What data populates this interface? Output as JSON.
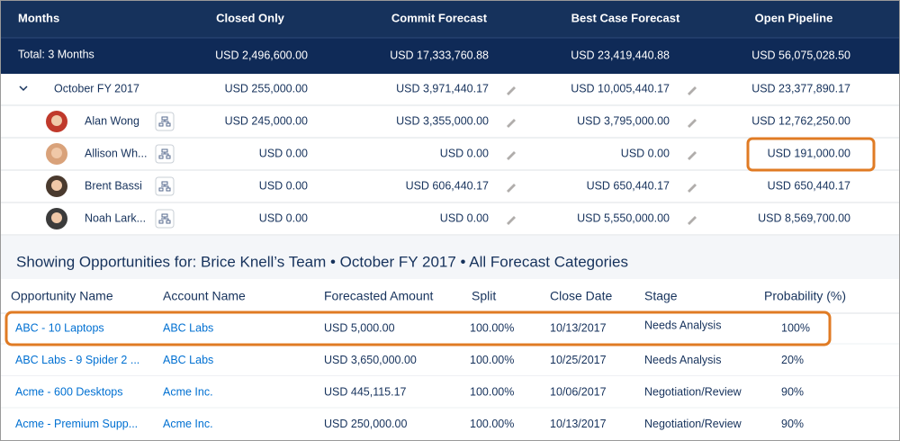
{
  "forecast": {
    "columns": [
      "Months",
      "Closed Only",
      "Commit Forecast",
      "Best Case Forecast",
      "Open Pipeline"
    ],
    "total": {
      "label": "Total: 3 Months",
      "values": [
        "USD 2,496,600.00",
        "USD 17,333,760.88",
        "USD 23,419,440.88",
        "USD 56,075,028.50"
      ]
    },
    "rows": [
      {
        "name": "October FY 2017",
        "values": [
          "USD 255,000.00",
          "USD 3,971,440.17",
          "USD 10,005,440.17",
          "USD 23,377,890.17"
        ]
      },
      {
        "name": "Alan Wong",
        "values": [
          "USD 245,000.00",
          "USD 3,355,000.00",
          "USD 3,795,000.00",
          "USD 12,762,250.00"
        ]
      },
      {
        "name": "Allison Wh...",
        "values": [
          "USD 0.00",
          "USD 0.00",
          "USD 0.00",
          "USD 191,000.00"
        ]
      },
      {
        "name": "Brent Bassi",
        "values": [
          "USD 0.00",
          "USD 606,440.17",
          "USD 650,440.17",
          "USD 650,440.17"
        ]
      },
      {
        "name": "Noah Lark...",
        "values": [
          "USD 0.00",
          "USD 0.00",
          "USD 5,550,000.00",
          "USD 8,569,700.00"
        ]
      }
    ]
  },
  "opportunities": {
    "title": "Showing Opportunities for: Brice Knell’s Team • October FY 2017 • All Forecast Categories",
    "columns": [
      "Opportunity Name",
      "Account Name",
      "Forecasted Amount",
      "Split",
      "Close Date",
      "Stage",
      "Probability (%)"
    ],
    "rows": [
      [
        "ABC - 10 Laptops",
        "ABC Labs",
        "USD 5,000.00",
        "100.00%",
        "10/13/2017",
        "Needs Analysis",
        "100%"
      ],
      [
        "ABC Labs - 9 Spider 2 ...",
        "ABC Labs",
        "USD 3,650,000.00",
        "100.00%",
        "10/25/2017",
        "Needs Analysis",
        "20%"
      ],
      [
        "Acme - 600 Desktops",
        "Acme Inc.",
        "USD 445,115.17",
        "100.00%",
        "10/06/2017",
        "Negotiation/Review",
        "90%"
      ],
      [
        "Acme - Premium Supp...",
        "Acme Inc.",
        "USD 250,000.00",
        "100.00%",
        "10/13/2017",
        "Negotiation/Review",
        "90%"
      ]
    ]
  }
}
